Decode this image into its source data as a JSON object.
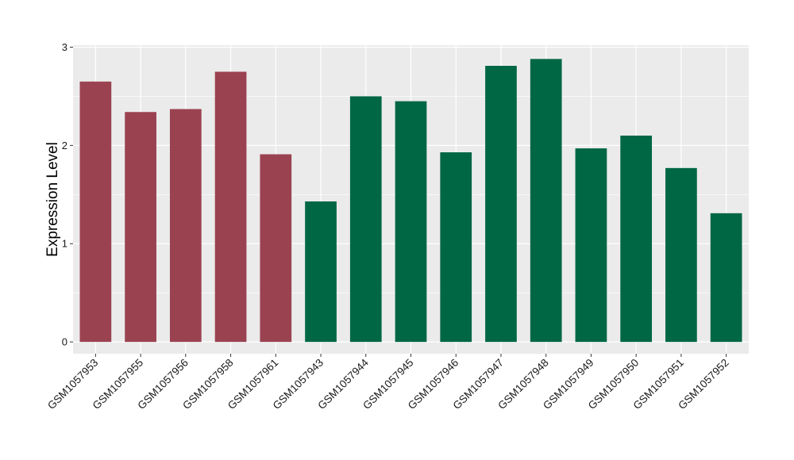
{
  "chart_data": {
    "type": "bar",
    "title": "",
    "xlabel": "",
    "ylabel": "Expression Level",
    "ylim": [
      -0.12,
      3.02
    ],
    "yticks": [
      0,
      1,
      2,
      3
    ],
    "grid": true,
    "background_color": "#EBEBEB",
    "grid_color": "#FFFFFF",
    "categories": [
      "GSM1057953",
      "GSM1057955",
      "GSM1057956",
      "GSM1057958",
      "GSM1057961",
      "GSM1057943",
      "GSM1057944",
      "GSM1057945",
      "GSM1057946",
      "GSM1057947",
      "GSM1057948",
      "GSM1057949",
      "GSM1057950",
      "GSM1057951",
      "GSM1057952"
    ],
    "values": [
      2.65,
      2.34,
      2.37,
      2.75,
      1.91,
      1.43,
      2.5,
      2.45,
      1.93,
      2.81,
      2.88,
      1.97,
      2.1,
      1.77,
      1.31
    ],
    "bar_colors": [
      "#9B4251",
      "#9B4251",
      "#9B4251",
      "#9B4251",
      "#9B4251",
      "#006744",
      "#006744",
      "#006744",
      "#006744",
      "#006744",
      "#006744",
      "#006744",
      "#006744",
      "#006744",
      "#006744"
    ]
  }
}
